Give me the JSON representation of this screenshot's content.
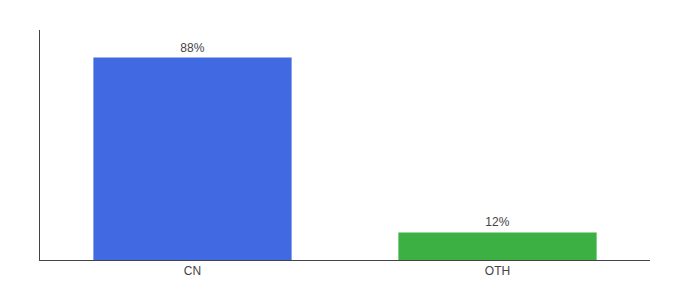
{
  "chart_data": {
    "type": "bar",
    "categories": [
      "CN",
      "OTH"
    ],
    "values": [
      88,
      12
    ],
    "value_labels": [
      "88%",
      "12%"
    ],
    "colors": [
      "#4169e1",
      "#3cb043"
    ],
    "data_labels": true,
    "ylim": [
      0,
      100
    ],
    "grid": false,
    "tick_labels": "x"
  }
}
